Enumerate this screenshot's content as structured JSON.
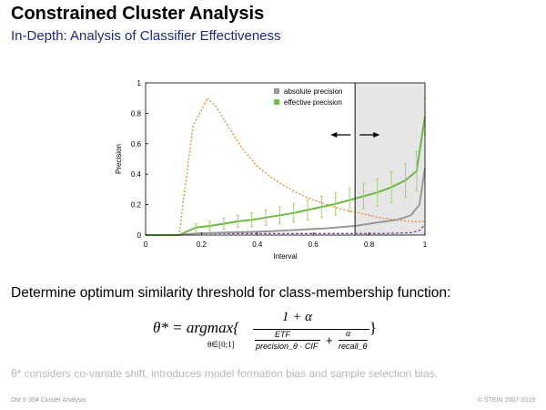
{
  "slide": {
    "title": "Constrained Cluster Analysis",
    "subtitle": "In-Depth: Analysis of Classifier Effectiveness",
    "statement": "Determine optimum similarity threshold for class-membership function:",
    "note": "θ* considers co-variate shift, introduces model formation bias and sample selection bias.",
    "footer_left": "DM II-304   Cluster Analysis",
    "footer_right": "© STEIN 2007-2019"
  },
  "formula": {
    "lhs": "θ* = argmax{",
    "sub": "θ∈[0;1]",
    "numerator": "1 + α",
    "den_left_top": "ETF",
    "den_left_bottom": "precision_θ · CIF",
    "den_plus": "+",
    "den_right_top": "α",
    "den_right_bottom": "recall_θ",
    "close": "}"
  },
  "colors": {
    "absolute": "#999999",
    "effective": "#6cb944",
    "orange": "#f08a24",
    "purple": "#7b4aa0",
    "shade": "#e6e6e6",
    "error_bar": "#9fd36a",
    "subtitle": "#1b2a8a"
  },
  "chart_data": {
    "type": "line",
    "xlabel": "Interval",
    "ylabel": "Precision",
    "xlim": [
      0,
      1
    ],
    "ylim": [
      0,
      1
    ],
    "x_ticks": [
      "0",
      "0.2",
      "0.4",
      "0.6",
      "0.8",
      "1"
    ],
    "y_ticks": [
      "0",
      "0.2",
      "0.4",
      "0.6",
      "0.8",
      "1"
    ],
    "legend_position": "top-right",
    "threshold_x": 0.75,
    "shaded_range": [
      0.75,
      1.0
    ],
    "series": [
      {
        "name": "absolute precision",
        "style": "solid",
        "x": [
          0,
          0.12,
          0.18,
          0.25,
          0.35,
          0.45,
          0.55,
          0.65,
          0.75,
          0.82,
          0.9,
          0.95,
          0.98,
          1.0
        ],
        "y": [
          0,
          0,
          0.01,
          0.015,
          0.02,
          0.025,
          0.035,
          0.045,
          0.06,
          0.08,
          0.1,
          0.13,
          0.2,
          0.44
        ]
      },
      {
        "name": "effective precision",
        "style": "solid-with-error-bars",
        "x": [
          0,
          0.12,
          0.18,
          0.23,
          0.28,
          0.33,
          0.38,
          0.43,
          0.48,
          0.53,
          0.58,
          0.63,
          0.68,
          0.73,
          0.78,
          0.83,
          0.88,
          0.93,
          0.97,
          1.0
        ],
        "y": [
          0,
          0,
          0.05,
          0.06,
          0.075,
          0.09,
          0.1,
          0.115,
          0.13,
          0.145,
          0.165,
          0.185,
          0.205,
          0.23,
          0.255,
          0.28,
          0.315,
          0.36,
          0.42,
          0.78
        ],
        "error": [
          0,
          0,
          0.025,
          0.03,
          0.035,
          0.04,
          0.045,
          0.05,
          0.055,
          0.06,
          0.065,
          0.07,
          0.075,
          0.08,
          0.085,
          0.09,
          0.1,
          0.11,
          0.13,
          0.12
        ]
      },
      {
        "style": "dotted",
        "x": [
          0,
          0.12,
          0.14,
          0.17,
          0.2,
          0.22,
          0.25,
          0.3,
          0.35,
          0.4,
          0.45,
          0.5,
          0.55,
          0.6,
          0.65,
          0.7,
          0.75,
          0.8,
          0.85,
          0.9,
          0.95,
          1.0
        ],
        "y": [
          0,
          0,
          0.3,
          0.72,
          0.82,
          0.9,
          0.85,
          0.7,
          0.56,
          0.45,
          0.38,
          0.32,
          0.27,
          0.23,
          0.2,
          0.17,
          0.15,
          0.13,
          0.11,
          0.1,
          0.09,
          0.09
        ]
      },
      {
        "style": "dashed",
        "x": [
          0,
          0.12,
          0.18,
          0.3,
          0.5,
          0.7,
          0.85,
          0.95,
          0.98,
          1.0
        ],
        "y": [
          0,
          0,
          0.01,
          0.01,
          0.01,
          0.01,
          0.01,
          0.015,
          0.03,
          0.07
        ]
      }
    ]
  }
}
